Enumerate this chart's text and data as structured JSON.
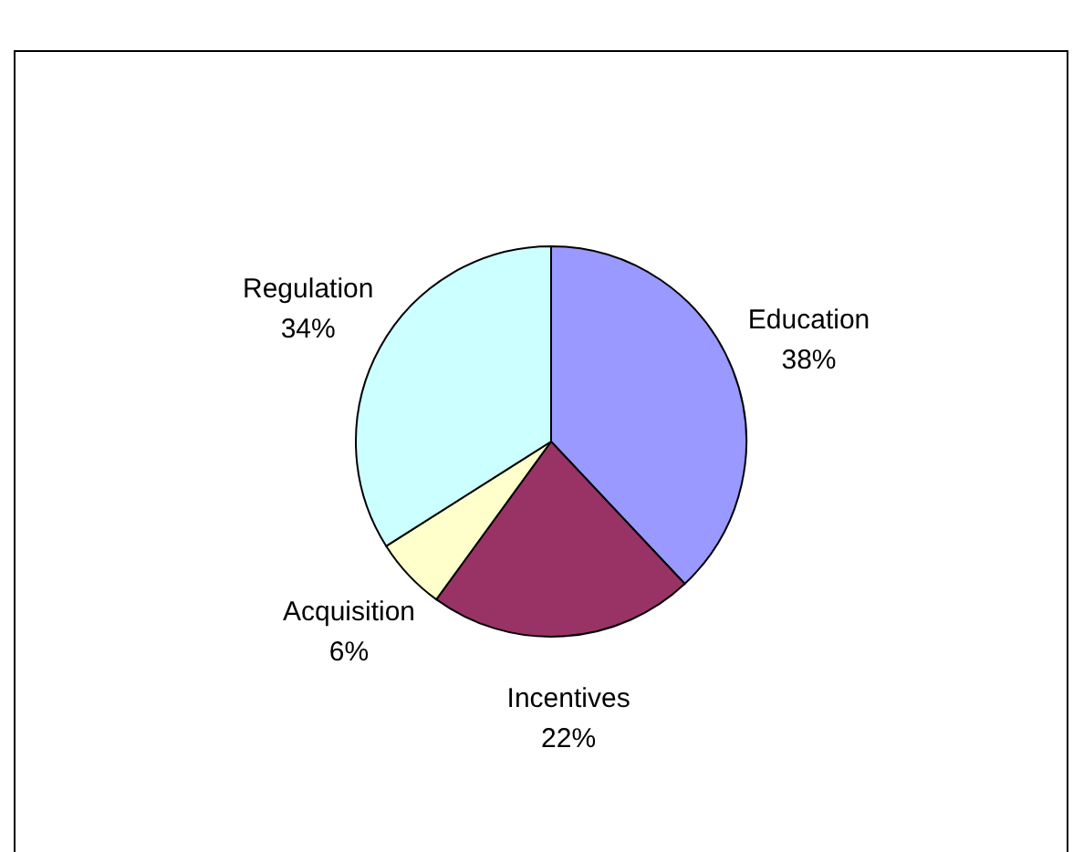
{
  "chart_data": {
    "type": "pie",
    "categories": [
      "Education",
      "Incentives",
      "Acquisition",
      "Regulation"
    ],
    "values": [
      38,
      22,
      6,
      34
    ],
    "colors": [
      "#9999ff",
      "#993366",
      "#ffffcc",
      "#ccffff"
    ],
    "value_labels": [
      "38%",
      "22%",
      "6%",
      "34%"
    ]
  }
}
